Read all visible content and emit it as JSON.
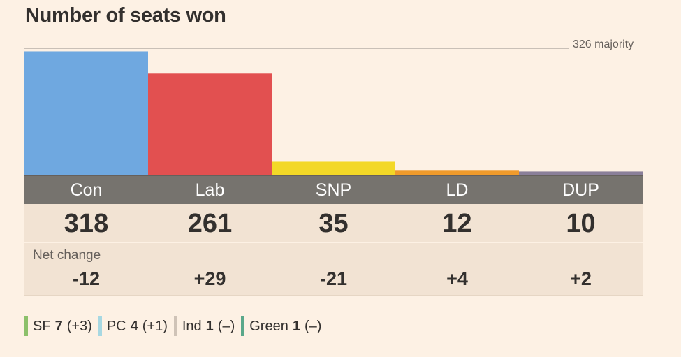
{
  "chart_data": {
    "type": "bar",
    "title": "Number of seats won",
    "categories": [
      "Con",
      "Lab",
      "SNP",
      "LD",
      "DUP"
    ],
    "values": [
      318,
      261,
      35,
      12,
      10
    ],
    "colors": [
      "#6fa8e0",
      "#e25050",
      "#f3d827",
      "#f09b2c",
      "#8a7f99"
    ],
    "ylim": [
      0,
      326
    ],
    "reference_line": {
      "value": 326,
      "label": "326 majority"
    },
    "net_change_label": "Net change",
    "net_change": [
      "-12",
      "+29",
      "-21",
      "+4",
      "+2"
    ],
    "others": [
      {
        "party": "SF",
        "seats": "7",
        "change": "(+3)",
        "color": "#8cc06a"
      },
      {
        "party": "PC",
        "seats": "4",
        "change": "(+1)",
        "color": "#a7d8e2"
      },
      {
        "party": "Ind",
        "seats": "1",
        "change": "(–)",
        "color": "#cfc3b7"
      },
      {
        "party": "Green",
        "seats": "1",
        "change": "(–)",
        "color": "#5aa88a"
      }
    ]
  }
}
